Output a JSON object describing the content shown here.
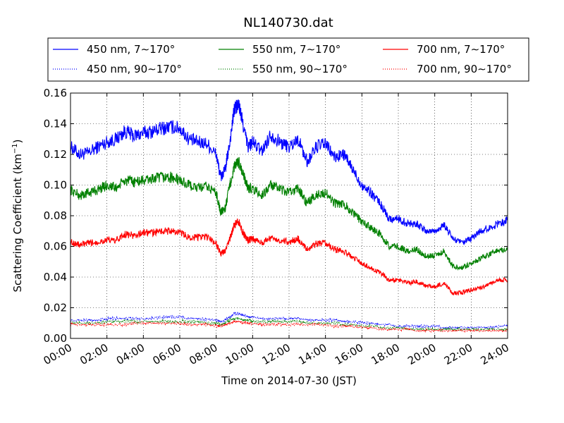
{
  "chart_data": {
    "type": "line",
    "title": "NL140730.dat",
    "xlabel": "Time on 2014-07-30 (JST)",
    "ylabel_main": "Scattering Coefficient (km",
    "ylabel_sup": "−1",
    "ylabel_close": ")",
    "xlim": [
      0,
      24
    ],
    "ylim": [
      0.0,
      0.16
    ],
    "x_ticks": [
      0,
      2,
      4,
      6,
      8,
      10,
      12,
      14,
      16,
      18,
      20,
      22,
      24
    ],
    "x_tick_labels": [
      "00:00",
      "02:00",
      "04:00",
      "06:00",
      "08:00",
      "10:00",
      "12:00",
      "14:00",
      "16:00",
      "18:00",
      "20:00",
      "22:00",
      "24:00"
    ],
    "y_ticks": [
      0.0,
      0.02,
      0.04,
      0.06,
      0.08,
      0.1,
      0.12,
      0.14,
      0.16
    ],
    "y_tick_labels": [
      "0.00",
      "0.02",
      "0.04",
      "0.06",
      "0.08",
      "0.10",
      "0.12",
      "0.14",
      "0.16"
    ],
    "grid": true,
    "legend_position": "top, above plot",
    "x_hours": [
      0,
      0.5,
      1,
      1.5,
      2,
      2.5,
      3,
      3.5,
      4,
      4.5,
      5,
      5.5,
      6,
      6.5,
      7,
      7.5,
      8,
      8.25,
      8.5,
      8.75,
      9,
      9.25,
      9.5,
      9.75,
      10,
      10.5,
      11,
      11.5,
      12,
      12.5,
      13,
      13.5,
      14,
      14.5,
      15,
      15.5,
      16,
      16.5,
      17,
      17.5,
      18,
      18.5,
      19,
      19.5,
      20,
      20.5,
      21,
      21.5,
      22,
      22.5,
      23,
      23.5,
      24
    ],
    "series": [
      {
        "name": "450 nm, 7∼170°",
        "style": "solid",
        "color": "#0000ff",
        "values": [
          0.125,
          0.12,
          0.121,
          0.125,
          0.128,
          0.13,
          0.135,
          0.132,
          0.134,
          0.135,
          0.137,
          0.138,
          0.137,
          0.13,
          0.128,
          0.127,
          0.12,
          0.105,
          0.11,
          0.128,
          0.15,
          0.152,
          0.138,
          0.125,
          0.128,
          0.122,
          0.133,
          0.128,
          0.125,
          0.13,
          0.115,
          0.125,
          0.127,
          0.118,
          0.12,
          0.11,
          0.1,
          0.095,
          0.088,
          0.078,
          0.078,
          0.075,
          0.075,
          0.07,
          0.07,
          0.074,
          0.065,
          0.062,
          0.065,
          0.07,
          0.072,
          0.075,
          0.077
        ]
      },
      {
        "name": "450 nm, 90∼170°",
        "style": "dotted",
        "color": "#0000ff",
        "values": [
          0.012,
          0.012,
          0.012,
          0.012,
          0.013,
          0.013,
          0.013,
          0.013,
          0.013,
          0.013,
          0.014,
          0.014,
          0.014,
          0.013,
          0.013,
          0.012,
          0.012,
          0.011,
          0.012,
          0.014,
          0.016,
          0.016,
          0.015,
          0.014,
          0.014,
          0.013,
          0.013,
          0.013,
          0.013,
          0.013,
          0.012,
          0.012,
          0.012,
          0.012,
          0.011,
          0.011,
          0.01,
          0.01,
          0.009,
          0.009,
          0.008,
          0.008,
          0.008,
          0.008,
          0.008,
          0.007,
          0.007,
          0.007,
          0.007,
          0.007,
          0.007,
          0.008,
          0.008
        ]
      },
      {
        "name": "550 nm, 7∼170°",
        "style": "solid",
        "color": "#008000",
        "values": [
          0.097,
          0.093,
          0.095,
          0.097,
          0.1,
          0.098,
          0.103,
          0.102,
          0.103,
          0.104,
          0.105,
          0.105,
          0.103,
          0.1,
          0.098,
          0.099,
          0.095,
          0.082,
          0.085,
          0.1,
          0.112,
          0.115,
          0.106,
          0.098,
          0.098,
          0.093,
          0.1,
          0.097,
          0.095,
          0.098,
          0.088,
          0.094,
          0.095,
          0.088,
          0.088,
          0.082,
          0.076,
          0.072,
          0.068,
          0.06,
          0.06,
          0.057,
          0.058,
          0.054,
          0.054,
          0.057,
          0.047,
          0.046,
          0.049,
          0.052,
          0.055,
          0.058,
          0.058
        ]
      },
      {
        "name": "550 nm, 90∼170°",
        "style": "dotted",
        "color": "#008000",
        "values": [
          0.01,
          0.01,
          0.01,
          0.01,
          0.011,
          0.011,
          0.011,
          0.011,
          0.011,
          0.011,
          0.011,
          0.011,
          0.011,
          0.011,
          0.011,
          0.01,
          0.01,
          0.009,
          0.01,
          0.012,
          0.013,
          0.013,
          0.012,
          0.012,
          0.011,
          0.011,
          0.011,
          0.011,
          0.011,
          0.011,
          0.01,
          0.01,
          0.01,
          0.01,
          0.009,
          0.009,
          0.008,
          0.008,
          0.007,
          0.007,
          0.007,
          0.006,
          0.006,
          0.006,
          0.006,
          0.006,
          0.006,
          0.006,
          0.006,
          0.006,
          0.006,
          0.006,
          0.006
        ]
      },
      {
        "name": "700 nm, 7∼170°",
        "style": "solid",
        "color": "#ff0000",
        "values": [
          0.063,
          0.061,
          0.062,
          0.063,
          0.064,
          0.064,
          0.068,
          0.067,
          0.069,
          0.069,
          0.07,
          0.07,
          0.069,
          0.066,
          0.066,
          0.066,
          0.062,
          0.055,
          0.057,
          0.065,
          0.074,
          0.076,
          0.068,
          0.064,
          0.065,
          0.062,
          0.066,
          0.064,
          0.063,
          0.065,
          0.058,
          0.062,
          0.062,
          0.058,
          0.057,
          0.053,
          0.049,
          0.046,
          0.043,
          0.038,
          0.038,
          0.036,
          0.037,
          0.034,
          0.034,
          0.036,
          0.029,
          0.03,
          0.032,
          0.033,
          0.035,
          0.038,
          0.038
        ]
      },
      {
        "name": "700 nm, 90∼170°",
        "style": "dotted",
        "color": "#ff0000",
        "values": [
          0.009,
          0.009,
          0.009,
          0.009,
          0.009,
          0.009,
          0.009,
          0.01,
          0.01,
          0.01,
          0.01,
          0.01,
          0.01,
          0.009,
          0.009,
          0.009,
          0.008,
          0.008,
          0.009,
          0.01,
          0.011,
          0.011,
          0.01,
          0.01,
          0.01,
          0.009,
          0.009,
          0.009,
          0.009,
          0.009,
          0.009,
          0.009,
          0.009,
          0.008,
          0.008,
          0.008,
          0.007,
          0.007,
          0.006,
          0.006,
          0.006,
          0.006,
          0.005,
          0.005,
          0.005,
          0.005,
          0.005,
          0.005,
          0.005,
          0.005,
          0.005,
          0.005,
          0.005
        ]
      }
    ]
  }
}
